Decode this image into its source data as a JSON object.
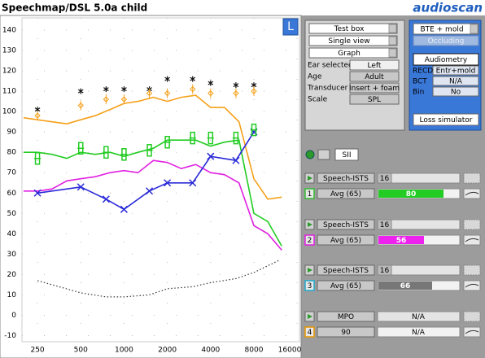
{
  "header": {
    "title": "Speechmap/DSL 5.0a child",
    "logo": "audioscan"
  },
  "chart_data": {
    "type": "line",
    "xscale": "log",
    "xlim": [
      195,
      16600
    ],
    "ylim": [
      -13,
      146
    ],
    "xticks": [
      250,
      500,
      1000,
      2000,
      4000,
      8000,
      16000
    ],
    "yticks": [
      -10,
      0,
      10,
      20,
      30,
      40,
      50,
      60,
      70,
      80,
      90,
      100,
      110,
      120,
      130,
      140
    ],
    "grid": true,
    "button": "L",
    "series": [
      {
        "color": "#f5a01a",
        "line": "solid",
        "marker": "none",
        "x": [
          200,
          250,
          315,
          400,
          500,
          630,
          800,
          1000,
          1250,
          1600,
          2000,
          2500,
          3150,
          4000,
          5000,
          6300,
          8000,
          10000,
          12500
        ],
        "values": [
          97,
          96,
          95,
          94,
          96,
          98,
          101,
          104,
          105,
          107,
          105,
          107,
          108,
          102,
          102,
          95,
          67,
          57,
          58
        ]
      },
      {
        "color": "#22cc22",
        "line": "solid",
        "marker": "none",
        "x": [
          200,
          250,
          315,
          400,
          500,
          630,
          800,
          1000,
          1250,
          1600,
          2000,
          2500,
          3150,
          4000,
          5000,
          6300,
          8000,
          10000,
          12500
        ],
        "values": [
          80,
          80,
          79,
          77,
          80,
          79,
          80,
          78,
          80,
          82,
          86,
          86,
          86,
          83,
          85,
          86,
          50,
          46,
          34
        ]
      },
      {
        "color": "#e020e0",
        "line": "solid",
        "marker": "none",
        "x": [
          200,
          250,
          315,
          400,
          500,
          630,
          800,
          1000,
          1250,
          1600,
          2000,
          2500,
          3150,
          4000,
          5000,
          6300,
          8000,
          10000,
          12500
        ],
        "values": [
          61,
          61,
          62,
          66,
          67,
          68,
          70,
          71,
          70,
          76,
          75,
          72,
          74,
          70,
          69,
          65,
          44,
          40,
          32
        ]
      },
      {
        "color": "#2a2ad8",
        "line": "solid",
        "marker": "x",
        "x": [
          250,
          500,
          750,
          1000,
          1500,
          2000,
          3000,
          4000,
          6000,
          8000
        ],
        "values": [
          60,
          63,
          57,
          52,
          61,
          65,
          65,
          78,
          76,
          90
        ]
      },
      {
        "color": "#333333",
        "line": "dotted",
        "marker": "none",
        "x": [
          250,
          500,
          750,
          1000,
          1500,
          2000,
          3000,
          4000,
          6000,
          8000,
          12000
        ],
        "values": [
          17,
          11,
          9,
          9,
          10,
          13,
          14,
          16,
          18,
          21,
          27
        ]
      },
      {
        "color": "#111111",
        "line": "none",
        "marker": "asterisk",
        "x": [
          250,
          500,
          750,
          1000,
          1500,
          2000,
          3000,
          4000,
          6000,
          8000
        ],
        "values": [
          101,
          110,
          111,
          111,
          111,
          116,
          116,
          114,
          113,
          113
        ]
      },
      {
        "color": "#f5a01a",
        "line": "none",
        "marker": "diamond",
        "x": [
          250,
          500,
          750,
          1000,
          1500,
          2000,
          3000,
          4000,
          6000,
          8000
        ],
        "values": [
          98,
          103,
          106,
          106,
          109,
          109,
          111,
          109,
          109,
          110
        ]
      },
      {
        "color": "#22cc22",
        "line": "none",
        "marker": "bar",
        "x": [
          250,
          500,
          750,
          1000,
          1500,
          2000,
          3000,
          4000,
          6000,
          8000
        ],
        "values": [
          77,
          82,
          80,
          79,
          81,
          85,
          87,
          87,
          87,
          91
        ]
      }
    ]
  },
  "panel": {
    "buttons": [
      "Test box",
      "Single view",
      "Graph"
    ],
    "settings": [
      [
        "Ear selected",
        "Left"
      ],
      [
        "Age",
        "Adult"
      ],
      [
        "Transducer",
        "Insert + foam"
      ],
      [
        "Scale",
        "SPL"
      ]
    ],
    "device": {
      "dropdown": "BTE + mold",
      "occluding": "Occluding",
      "audiometry": "Audiometry",
      "rows": [
        [
          "RECD",
          "Entr+mold"
        ],
        [
          "BCT",
          "N/A"
        ],
        [
          "Bin",
          "No"
        ]
      ],
      "loss": "Loss simulator"
    },
    "sii": "SII",
    "tests": [
      {
        "number": "1",
        "color": "#33bb33",
        "stimulus": "Speech-ISTS",
        "duration": 16,
        "level": "Avg (65)",
        "sii": 80,
        "bar_color": "#22cc22"
      },
      {
        "number": "2",
        "color": "#dd22dd",
        "stimulus": "Speech-ISTS",
        "duration": 16,
        "level": "Avg (65)",
        "sii": 56,
        "bar_color": "#ee22ee"
      },
      {
        "number": "3",
        "color": "#22aacc",
        "stimulus": "Speech-ISTS",
        "duration": 16,
        "level": "Avg (65)",
        "sii": 66,
        "bar_color": "#777777"
      },
      {
        "number": "4",
        "color": "#e69500",
        "stimulus": "MPO",
        "result": "N/A",
        "level": "90",
        "result2": "N/A"
      }
    ]
  }
}
